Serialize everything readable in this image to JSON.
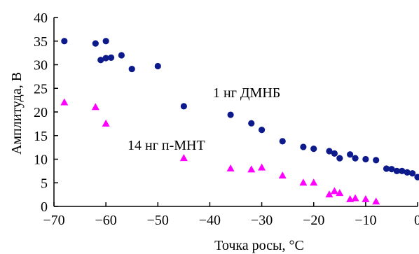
{
  "chart_data": {
    "type": "scatter",
    "title": "",
    "xlabel": "Точка росы, °C",
    "ylabel": "Амплитуда, В",
    "xlim": [
      -70,
      0
    ],
    "ylim": [
      0,
      40
    ],
    "xticks": [
      -70,
      -60,
      -50,
      -40,
      -30,
      -20,
      -10,
      0
    ],
    "yticks": [
      0,
      5,
      10,
      15,
      20,
      25,
      30,
      35,
      40
    ],
    "xtick_labels": [
      "−70",
      "−60",
      "−50",
      "−40",
      "−30",
      "−20",
      "−10",
      "0"
    ],
    "ytick_labels": [
      "0",
      "5",
      "10",
      "15",
      "20",
      "25",
      "30",
      "35",
      "40"
    ],
    "grid": false,
    "legend": "inline labels",
    "series": [
      {
        "name": "1 нг ДМНБ",
        "marker": "circle",
        "color": "#0d1a8c",
        "points": [
          [
            -68,
            35.0
          ],
          [
            -62,
            34.5
          ],
          [
            -60,
            35.0
          ],
          [
            -61,
            31.0
          ],
          [
            -60,
            31.4
          ],
          [
            -59,
            31.5
          ],
          [
            -57,
            32.0
          ],
          [
            -55,
            29.1
          ],
          [
            -50,
            29.7
          ],
          [
            -45,
            21.2
          ],
          [
            -36,
            19.4
          ],
          [
            -32,
            17.6
          ],
          [
            -30,
            16.2
          ],
          [
            -26,
            13.8
          ],
          [
            -22,
            12.6
          ],
          [
            -20,
            12.2
          ],
          [
            -17,
            11.7
          ],
          [
            -16,
            11.2
          ],
          [
            -15,
            10.2
          ],
          [
            -13,
            11.0
          ],
          [
            -12,
            10.2
          ],
          [
            -10,
            10.0
          ],
          [
            -8,
            9.8
          ],
          [
            -6,
            8.0
          ],
          [
            -5,
            7.9
          ],
          [
            -4,
            7.5
          ],
          [
            -3,
            7.5
          ],
          [
            -2,
            7.2
          ],
          [
            -1,
            7.0
          ],
          [
            0,
            6.2
          ]
        ]
      },
      {
        "name": "14 нг п-МНТ",
        "marker": "triangle",
        "color": "#ff00ff",
        "points": [
          [
            -68,
            22.0
          ],
          [
            -62,
            21.0
          ],
          [
            -60,
            17.5
          ],
          [
            -45,
            10.2
          ],
          [
            -36,
            8.0
          ],
          [
            -32,
            7.8
          ],
          [
            -30,
            8.2
          ],
          [
            -26,
            6.5
          ],
          [
            -22,
            5.0
          ],
          [
            -20,
            5.0
          ],
          [
            -17,
            2.5
          ],
          [
            -16,
            3.2
          ],
          [
            -15,
            2.8
          ],
          [
            -13,
            1.5
          ],
          [
            -12,
            1.7
          ],
          [
            -10,
            1.5
          ],
          [
            -8,
            1.0
          ]
        ]
      }
    ]
  }
}
